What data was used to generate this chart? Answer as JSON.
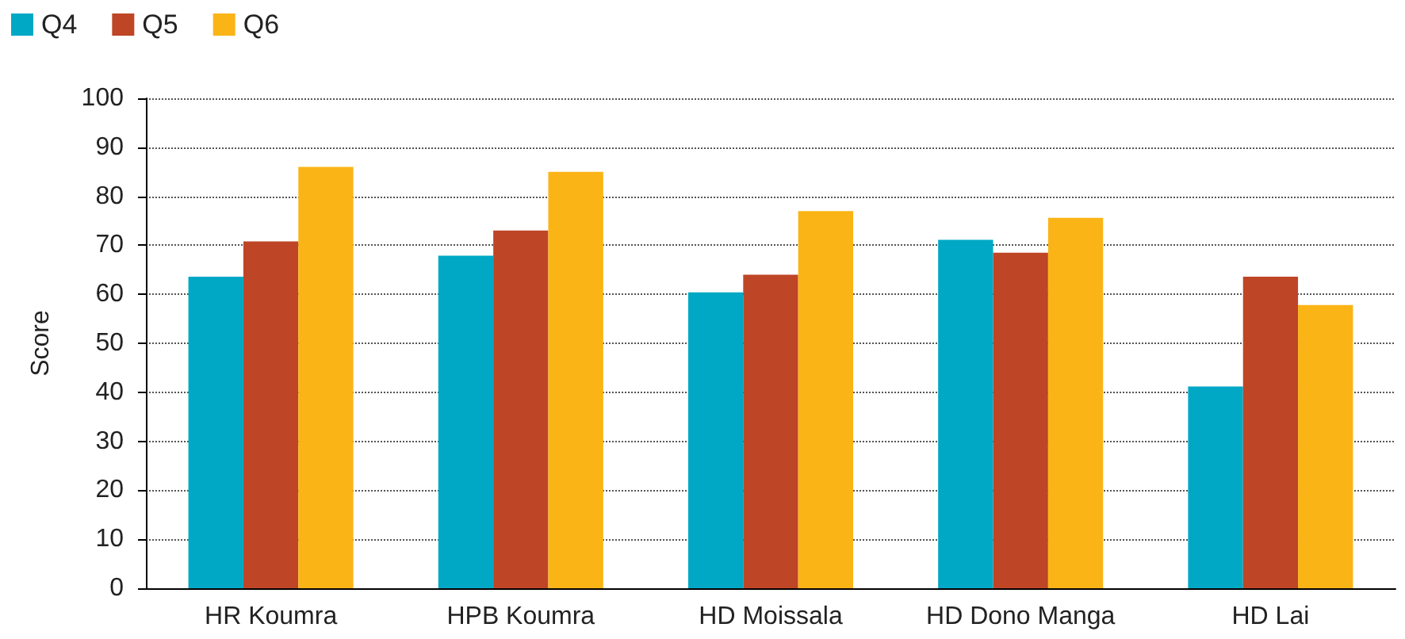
{
  "chart_data": {
    "type": "bar",
    "ylabel": "Score",
    "categories": [
      "HR Koumra",
      "HPB Koumra",
      "HD Moissala",
      "HD Dono Manga",
      "HD Lai"
    ],
    "series": [
      {
        "name": "Q4",
        "color": "#00a8c5",
        "values": [
          63.6,
          67.9,
          60.4,
          71.1,
          41.2
        ]
      },
      {
        "name": "Q5",
        "color": "#bf4527",
        "values": [
          70.8,
          73,
          64,
          68.5,
          63.6
        ]
      },
      {
        "name": "Q6",
        "color": "#fbb416",
        "values": [
          86,
          85,
          77,
          75.6,
          57.8
        ]
      }
    ],
    "ylim": [
      0,
      100
    ],
    "yticks": [
      0,
      10,
      20,
      30,
      40,
      50,
      60,
      70,
      80,
      90,
      100
    ],
    "grid": "y",
    "legend": "top left"
  }
}
